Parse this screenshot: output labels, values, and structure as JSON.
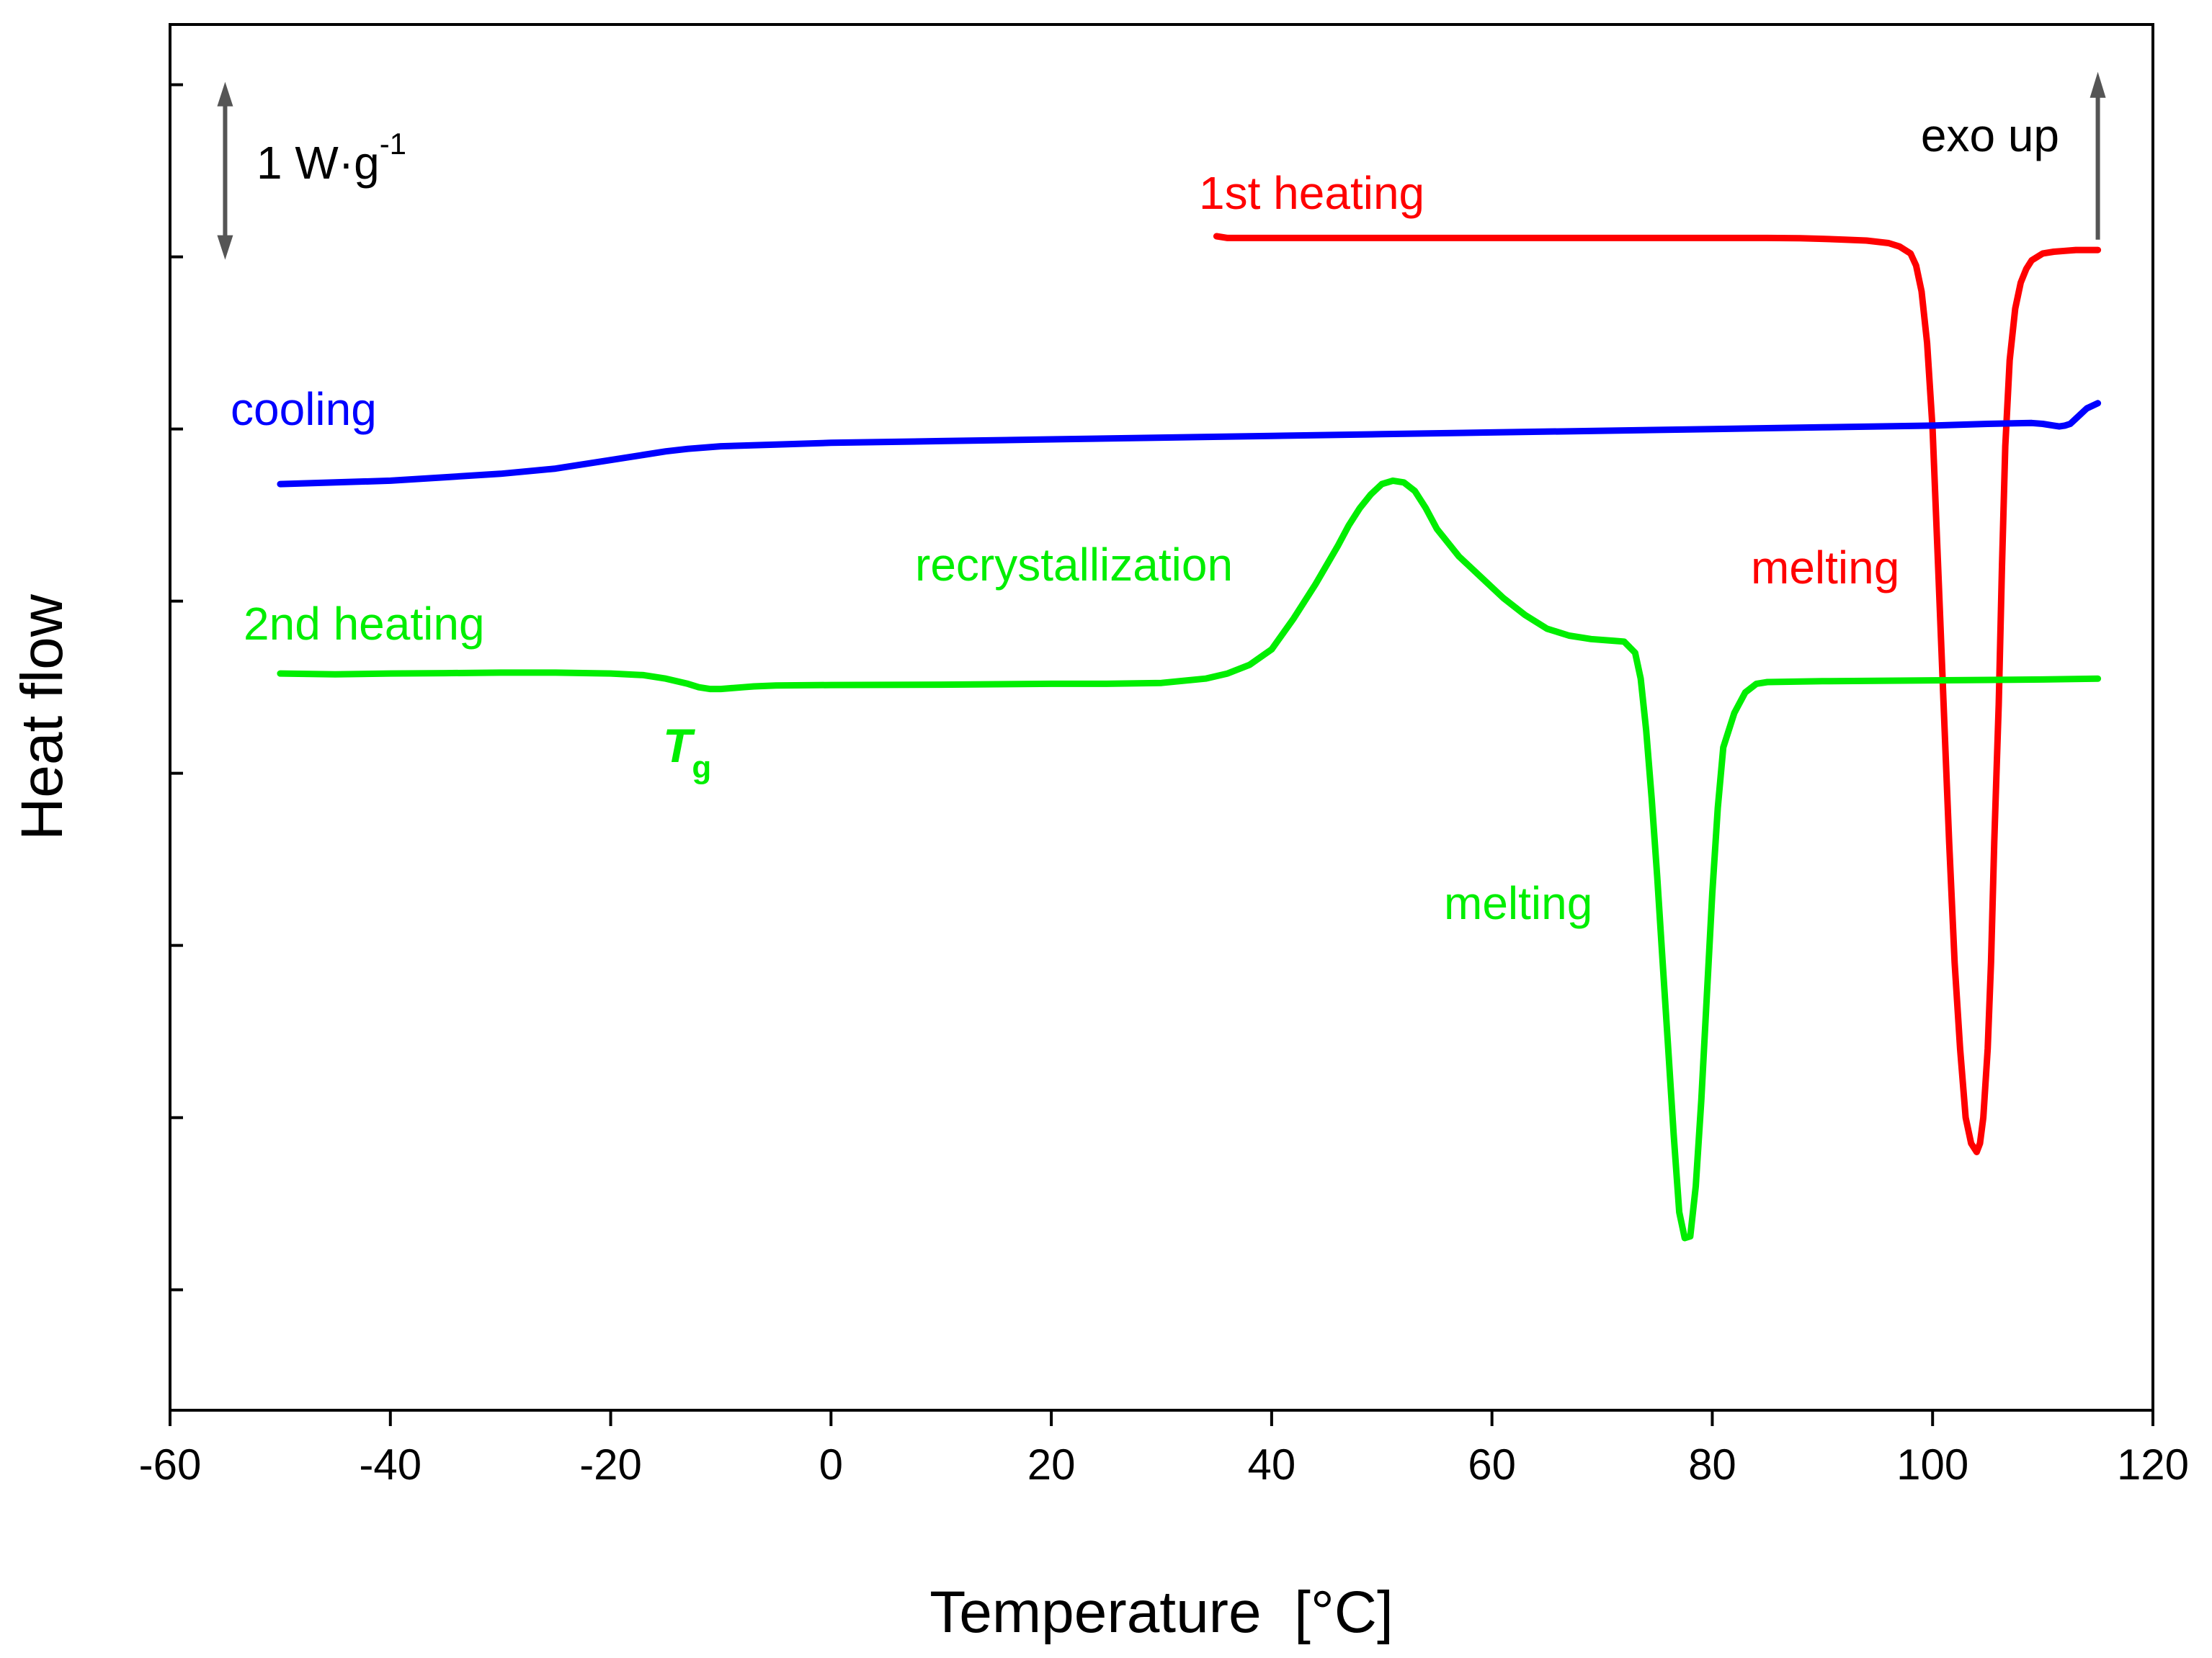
{
  "chart_data": {
    "type": "line",
    "title": "",
    "xlabel": "Temperature  [°C]",
    "ylabel": "Heat flow",
    "xlim": [
      -60,
      120
    ],
    "ylim": [
      -6.7,
      1.35
    ],
    "x_ticks": [
      -60,
      -40,
      -20,
      0,
      20,
      40,
      60,
      80,
      100,
      120
    ],
    "x_tick_labels": [
      "-60",
      "-40",
      "-20",
      "0",
      "20",
      "40",
      "60",
      "80",
      "100",
      "120"
    ],
    "y_tick_values": [
      1.0,
      0.0,
      -1.0,
      -2.0,
      -3.0,
      -4.0,
      -5.0,
      -6.0
    ],
    "y_tick_labels_shown": false,
    "grid": false,
    "legend": "none",
    "scale_bar": {
      "label": "1 W·g",
      "superscript": "-1",
      "value_W_per_g": 1,
      "x": -55,
      "y_from": 0.0,
      "y_to": 1.0
    },
    "exo_indicator": {
      "label": "exo up",
      "x": 115,
      "y_from": 0.1,
      "y_to": 1.05
    },
    "series": [
      {
        "name": "1st heating",
        "color": "#ff0000",
        "x": [
          35,
          36,
          38,
          40,
          45,
          50,
          55,
          60,
          65,
          70,
          75,
          80,
          85,
          88,
          90,
          92,
          94,
          96,
          97,
          98,
          98.5,
          99,
          99.5,
          100,
          100.5,
          101,
          101.5,
          102,
          102.5,
          103,
          103.5,
          104,
          104.3,
          104.6,
          105,
          105.3,
          105.6,
          106,
          106.3,
          106.6,
          107,
          107.5,
          108,
          108.5,
          109,
          110,
          111,
          112,
          113,
          114,
          115
        ],
        "values": [
          0.12,
          0.11,
          0.11,
          0.11,
          0.11,
          0.11,
          0.11,
          0.11,
          0.11,
          0.11,
          0.11,
          0.11,
          0.11,
          0.108,
          0.105,
          0.1,
          0.095,
          0.08,
          0.06,
          0.02,
          -0.05,
          -0.2,
          -0.5,
          -1.0,
          -1.8,
          -2.6,
          -3.4,
          -4.1,
          -4.6,
          -5.0,
          -5.15,
          -5.2,
          -5.15,
          -5.0,
          -4.6,
          -4.1,
          -3.4,
          -2.6,
          -1.8,
          -1.1,
          -0.6,
          -0.3,
          -0.15,
          -0.07,
          -0.02,
          0.02,
          0.03,
          0.035,
          0.04,
          0.04,
          0.04
        ]
      },
      {
        "name": "cooling",
        "color": "#0000ff",
        "x": [
          -50,
          -45,
          -40,
          -35,
          -30,
          -25,
          -20,
          -17,
          -15,
          -13,
          -10,
          -5,
          0,
          10,
          20,
          30,
          40,
          50,
          60,
          70,
          80,
          90,
          100,
          105,
          109,
          110,
          111,
          111.5,
          112,
          112.5,
          113,
          113.5,
          114,
          115
        ],
        "values": [
          -1.32,
          -1.31,
          -1.3,
          -1.28,
          -1.26,
          -1.23,
          -1.18,
          -1.15,
          -1.13,
          -1.115,
          -1.1,
          -1.09,
          -1.08,
          -1.07,
          -1.06,
          -1.05,
          -1.04,
          -1.03,
          -1.02,
          -1.01,
          -1.0,
          -0.99,
          -0.98,
          -0.97,
          -0.965,
          -0.97,
          -0.98,
          -0.985,
          -0.98,
          -0.97,
          -0.94,
          -0.91,
          -0.88,
          -0.85
        ]
      },
      {
        "name": "2nd heating",
        "color": "#00ee00",
        "x": [
          -50,
          -45,
          -40,
          -35,
          -30,
          -25,
          -20,
          -17,
          -15,
          -13,
          -12,
          -11,
          -10,
          -9,
          -8,
          -7,
          -5,
          0,
          10,
          20,
          25,
          30,
          34,
          36,
          38,
          40,
          42,
          44,
          46,
          47,
          48,
          49,
          50,
          51,
          52,
          53,
          54,
          55,
          57,
          59,
          61,
          63,
          65,
          67,
          69,
          71,
          72,
          73,
          73.5,
          74,
          74.5,
          75,
          75.5,
          76,
          76.5,
          77,
          77.5,
          78,
          78.5,
          79,
          79.5,
          80,
          80.5,
          81,
          82,
          83,
          84,
          85,
          90,
          100,
          110,
          115
        ],
        "values": [
          -2.42,
          -2.425,
          -2.42,
          -2.418,
          -2.415,
          -2.415,
          -2.42,
          -2.43,
          -2.45,
          -2.48,
          -2.5,
          -2.51,
          -2.51,
          -2.505,
          -2.5,
          -2.495,
          -2.49,
          -2.487,
          -2.485,
          -2.48,
          -2.48,
          -2.475,
          -2.45,
          -2.42,
          -2.37,
          -2.28,
          -2.1,
          -1.9,
          -1.68,
          -1.56,
          -1.46,
          -1.38,
          -1.32,
          -1.3,
          -1.31,
          -1.36,
          -1.46,
          -1.58,
          -1.74,
          -1.86,
          -1.98,
          -2.08,
          -2.16,
          -2.2,
          -2.22,
          -2.23,
          -2.235,
          -2.3,
          -2.45,
          -2.75,
          -3.15,
          -3.6,
          -4.1,
          -4.6,
          -5.1,
          -5.55,
          -5.7,
          -5.69,
          -5.4,
          -4.9,
          -4.3,
          -3.7,
          -3.2,
          -2.85,
          -2.65,
          -2.53,
          -2.48,
          -2.47,
          -2.465,
          -2.46,
          -2.455,
          -2.45
        ]
      }
    ],
    "annotations": [
      {
        "text": "1st heating",
        "series": "1st heating"
      },
      {
        "text": "cooling",
        "series": "cooling"
      },
      {
        "text": "2nd heating",
        "series": "2nd heating"
      },
      {
        "text": "recrystallization",
        "series": "2nd heating"
      },
      {
        "text": "melting",
        "series": "1st heating"
      },
      {
        "text": "melting",
        "series": "2nd heating"
      },
      {
        "text": "T",
        "subscript": "g",
        "series": "2nd heating",
        "x": -10
      }
    ]
  }
}
